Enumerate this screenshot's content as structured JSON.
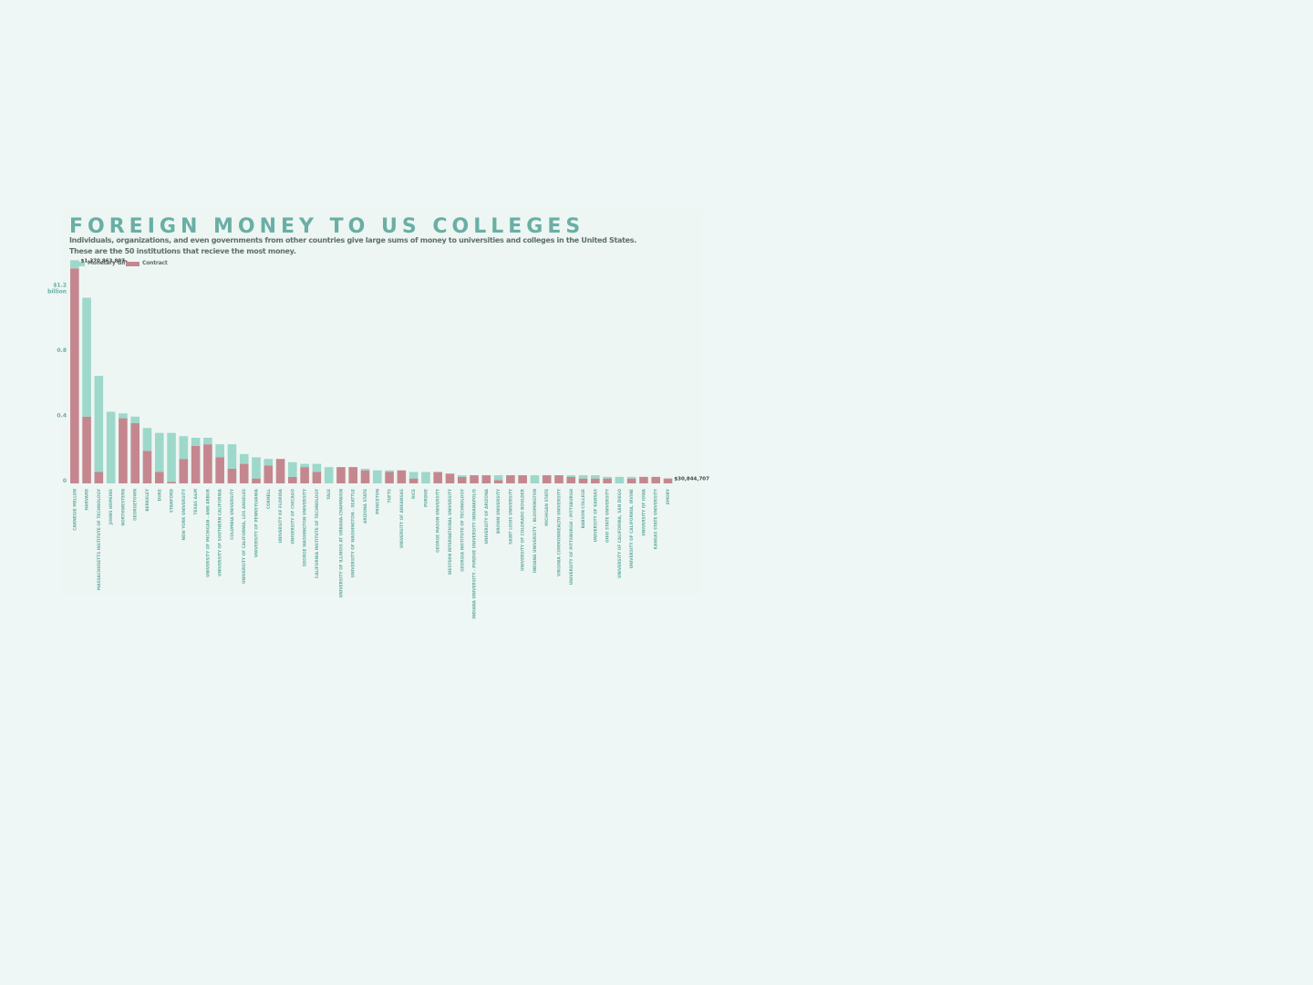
{
  "title": "FOREIGN MONEY TO US COLLEGES",
  "subtitle_line1": "Individuals, organizations, and even governments from other countries give large sums of money to  universities and colleges in the United States.",
  "subtitle_line2": "These are the 50 institutions that recieve the most money.",
  "colors": {
    "gift": "#9dd8cb",
    "contract": "#c5878f",
    "accent": "#6aaea4",
    "background": "#eef7f5"
  },
  "legend": [
    {
      "label": "Monetary Gift",
      "color": "#9dd8cb"
    },
    {
      "label": "Contract",
      "color": "#c5878f"
    }
  ],
  "chart_data": {
    "type": "bar",
    "stacked": true,
    "ylim": [
      0,
      1.4
    ],
    "yticks": [
      {
        "value": 0,
        "label": "0"
      },
      {
        "value": 0.4,
        "label": "0.4"
      },
      {
        "value": 0.8,
        "label": "0.8"
      },
      {
        "value": 1.2,
        "label": "$1.2",
        "label2": "billion"
      }
    ],
    "annotations": [
      {
        "index": 0,
        "text": "$1,370,863,807"
      },
      {
        "index": 49,
        "text": "$30,844,707"
      }
    ],
    "categories": [
      "CARNEGIE MELLON",
      "HARVARD",
      "MASSACHUSETTS INSTITUTE OF TECHNOLOGY",
      "JOHNS HOPKINS",
      "NORTHWESTERN",
      "GEORGETOWN",
      "BERKELEY",
      "DUKE",
      "STANFORD",
      "NEW YORK UNIVERSITY",
      "TEXAS A&M",
      "UNIVERSITY OF MICHIGAN - ANN ARBOR",
      "UNIVERSITY OF SOUTHERN CALIFORNIA",
      "COLUMBIA UNIVERSITY",
      "UNIVERSITY OF CALIFORNIA, LOS ANGELES",
      "UNIVERSITY OF PENNSYLVANIA",
      "CORNELL",
      "UNIVERSITY OF FLORIDA",
      "UNIVERSITY OF CHICAGO",
      "GEORGE WASHINGTON UNIVERSITY",
      "CALIFORNIA INSTITUTE OF TECHNOLOGY",
      "YALE",
      "UNIVERSITY OF ILLINOIS AT URBANA-CHAMPAIGN",
      "UNIVERSITY OF WASHINGTON - SEATTLE",
      "ARIZONA STATE",
      "PRINCETON",
      "TUFTS",
      "UNIVERSITY OF ARKANSAS",
      "RICE",
      "PURDUE",
      "GEORGE MASON UNIVERSITY",
      "WESTERN INTERNATIONAL UNIVERSITY",
      "GEORGIA INSTITUTE OF TECHNOLOGY",
      "INDIANA UNIVERSITY - PURDUE UNIVERSITY INDIANAPOLIS",
      "UNIVERSITY OF ARIZONA",
      "BROWN UNIVERSITY",
      "SAINT LOUIS UNIVERSITY",
      "UNIVERSITY OF COLORADO BOULDER",
      "INDIANA UNIVERSITY - BLOOMINGTON",
      "MICHIGAN STATE",
      "VIRGINIA COMMONWEALTH UNIVERSITY",
      "UNIVERSITY OF PITTSBURGH - PITTSBURGH",
      "BABSON COLLEGE",
      "UNIVERSITY OF KANSAS",
      "OHIO STATE UNIVERSITY",
      "UNIVERSITY OF CALIFORNIA, SAN DIEGO",
      "UNIVERSITY OF CALIFORNIA, IRVINE",
      "UNIVERSITY OF IOWA",
      "KANSAS STATE UNIVERSITY",
      "EMORY"
    ],
    "series": [
      {
        "name": "Contract",
        "values": [
          1.32,
          0.41,
          0.07,
          0.0,
          0.4,
          0.37,
          0.2,
          0.07,
          0.01,
          0.15,
          0.23,
          0.24,
          0.16,
          0.09,
          0.12,
          0.03,
          0.11,
          0.15,
          0.04,
          0.1,
          0.07,
          0.0,
          0.1,
          0.1,
          0.08,
          0.0,
          0.07,
          0.08,
          0.03,
          0.0,
          0.07,
          0.06,
          0.04,
          0.05,
          0.05,
          0.02,
          0.05,
          0.05,
          0.0,
          0.05,
          0.05,
          0.04,
          0.03,
          0.03,
          0.03,
          0.0,
          0.03,
          0.04,
          0.04,
          0.03
        ]
      },
      {
        "name": "Monetary Gift",
        "values": [
          0.05,
          0.73,
          0.59,
          0.44,
          0.03,
          0.04,
          0.14,
          0.24,
          0.3,
          0.14,
          0.05,
          0.04,
          0.08,
          0.15,
          0.06,
          0.13,
          0.04,
          0.0,
          0.09,
          0.02,
          0.05,
          0.1,
          0.0,
          0.0,
          0.01,
          0.08,
          0.01,
          0.0,
          0.04,
          0.07,
          0.0,
          0.0,
          0.01,
          0.0,
          0.0,
          0.03,
          0.0,
          0.0,
          0.05,
          0.0,
          0.0,
          0.01,
          0.02,
          0.02,
          0.01,
          0.04,
          0.01,
          0.0,
          0.0,
          0.0
        ]
      }
    ]
  }
}
